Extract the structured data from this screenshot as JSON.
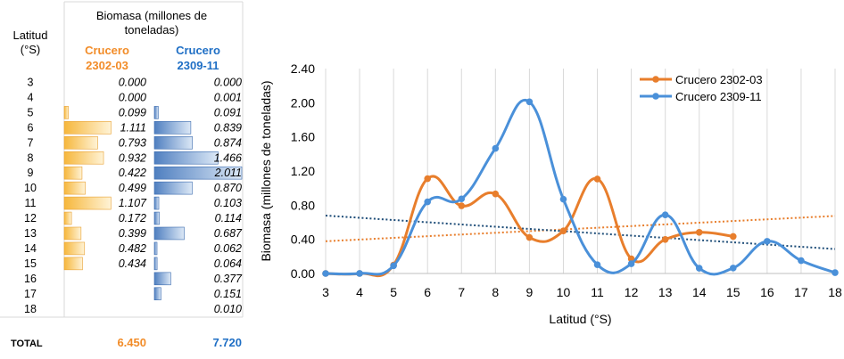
{
  "table": {
    "col_latitude_header": [
      "Latitud",
      "(°S)"
    ],
    "biomass_header": [
      "Biomasa (millones de",
      "toneladas)"
    ],
    "cruise_a_header": [
      "Crucero",
      "2302-03"
    ],
    "cruise_b_header": [
      "Crucero",
      "2309-11"
    ],
    "rows": [
      {
        "lat": "3",
        "a": "0.000",
        "b": "0.000"
      },
      {
        "lat": "4",
        "a": "0.000",
        "b": "0.001"
      },
      {
        "lat": "5",
        "a": "0.099",
        "b": "0.091"
      },
      {
        "lat": "6",
        "a": "1.111",
        "b": "0.839"
      },
      {
        "lat": "7",
        "a": "0.793",
        "b": "0.874"
      },
      {
        "lat": "8",
        "a": "0.932",
        "b": "1.466"
      },
      {
        "lat": "9",
        "a": "0.422",
        "b": "2.011"
      },
      {
        "lat": "10",
        "a": "0.499",
        "b": "0.870"
      },
      {
        "lat": "11",
        "a": "1.107",
        "b": "0.103"
      },
      {
        "lat": "12",
        "a": "0.172",
        "b": "0.114"
      },
      {
        "lat": "13",
        "a": "0.399",
        "b": "0.687"
      },
      {
        "lat": "14",
        "a": "0.482",
        "b": "0.062"
      },
      {
        "lat": "15",
        "a": "0.434",
        "b": "0.064"
      },
      {
        "lat": "16",
        "a": "",
        "b": "0.377"
      },
      {
        "lat": "17",
        "a": "",
        "b": "0.151"
      },
      {
        "lat": "18",
        "a": "",
        "b": "0.010"
      }
    ],
    "total_label": "TOTAL",
    "total_a": "6.450",
    "total_b": "7.720",
    "bar_scale_max": 2.011
  },
  "colors": {
    "orange": "#E87E2C",
    "orange_bar": "#F6B73C",
    "blue": "#4A90D9",
    "blue_bar": "#4F7FC0",
    "header_orange": "#F28C28",
    "header_blue": "#1F6FC5"
  },
  "chart_data": {
    "type": "line",
    "xlabel": "Latitud (°S)",
    "ylabel": "Biomasa (millones de toneladas)",
    "x": [
      3,
      4,
      5,
      6,
      7,
      8,
      9,
      10,
      11,
      12,
      13,
      14,
      15,
      16,
      17,
      18
    ],
    "xlim": [
      3,
      18
    ],
    "ylim": [
      0,
      2.4
    ],
    "yticks": [
      "0.00",
      "0.40",
      "0.80",
      "1.20",
      "1.60",
      "2.00",
      "2.40"
    ],
    "grid": "vertical",
    "legend_position": "top-right",
    "smooth": true,
    "series": [
      {
        "name": "Crucero 2302-03",
        "color": "#E87E2C",
        "x": [
          3,
          4,
          5,
          6,
          7,
          8,
          9,
          10,
          11,
          12,
          13,
          14,
          15
        ],
        "values": [
          0.0,
          0.0,
          0.099,
          1.111,
          0.793,
          0.932,
          0.422,
          0.499,
          1.107,
          0.172,
          0.399,
          0.482,
          0.434
        ]
      },
      {
        "name": "Crucero 2309-11",
        "color": "#4A90D9",
        "x": [
          3,
          4,
          5,
          6,
          7,
          8,
          9,
          10,
          11,
          12,
          13,
          14,
          15,
          16,
          17,
          18
        ],
        "values": [
          0.0,
          0.001,
          0.091,
          0.839,
          0.874,
          1.466,
          2.011,
          0.87,
          0.103,
          0.114,
          0.687,
          0.062,
          0.064,
          0.377,
          0.151,
          0.01
        ]
      }
    ],
    "trendlines": [
      {
        "series": "Crucero 2302-03",
        "style": "dotted",
        "color": "#E87E2C"
      },
      {
        "series": "Crucero 2309-11",
        "style": "dotted",
        "color": "#1F4E79"
      }
    ]
  }
}
